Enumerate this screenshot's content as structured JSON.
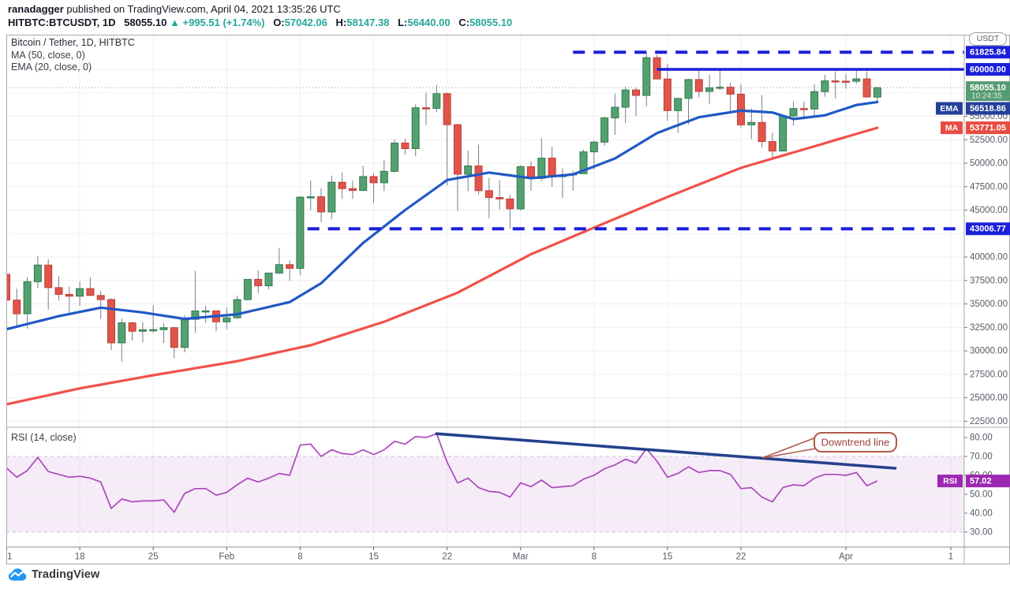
{
  "header": {
    "byline_user": "ranadagger",
    "byline_rest": " published on TradingView.com, April 04, 2021 13:35:26 UTC",
    "symbol_title": "HITBTC:BTCUSDT, 1D",
    "last_price": "58055.10",
    "change_arrow": "▲",
    "change_text": "+995.51 (+1.74%)",
    "ohlc": [
      {
        "k": "O:",
        "v": "57042.06"
      },
      {
        "k": "H:",
        "v": "58147.38"
      },
      {
        "k": "L:",
        "v": "56440.00"
      },
      {
        "k": "C:",
        "v": "58055.10"
      }
    ]
  },
  "legend": {
    "main": "Bitcoin / Tether, 1D, HITBTC",
    "ma": "MA (50, close, 0)",
    "ema": "EMA (20, close, 0)",
    "rsi": "RSI (14, close)"
  },
  "axis": {
    "currency_badge": "USDT"
  },
  "labels": {
    "level_high": "61825.84",
    "level_round": "60000.00",
    "current_price": "58055.10",
    "countdown": "10:24:35",
    "ema_tag": "EMA",
    "ema_value": "56518.86",
    "ma_tag": "MA",
    "ma_value": "53771.05",
    "level_support": "43006.77",
    "rsi_tag": "RSI",
    "rsi_value": "57.02"
  },
  "annotation": {
    "callout_label": "Downtrend line"
  },
  "footer": {
    "logo_text": "TradingView"
  },
  "colors": {
    "up": "#54a070",
    "up_border": "#2e7a4f",
    "down": "#e1544b",
    "down_border": "#bf3f37",
    "wick": "#7a7e87",
    "ema_line": "#2158c5",
    "ma_line": "#f1514a",
    "blue_line": "#1c1fd9",
    "trend": "#24418c",
    "rsi_line": "#ab47bc",
    "rsi_label_bg": "#9c27b0",
    "rsi_band": "rgba(171,71,188,0.10)",
    "rsi_band_border": "#cfc0d8",
    "teal": "#26a69a",
    "current_label_bg": "#579b72",
    "ema_label_bg": "#24409a",
    "ma_label_bg": "#e74c42",
    "callout_border": "#b05a4b",
    "callout_text": "#9c4437",
    "grid": "#efefef",
    "axis_text": "#555a64",
    "frame": "#a8a8a8",
    "current_dotted": "#9598a1",
    "logo_blue": "#2196f3"
  },
  "chart_data": {
    "type": "candlestick",
    "title": "Bitcoin / Tether, 1D, HITBTC",
    "exchange": "HITBTC",
    "symbol": "BTCUSDT",
    "interval": "1D",
    "start_date": "2021-01-11",
    "end_date": "2021-04-04",
    "price_axis": {
      "currency": "USDT",
      "tick_step": 2500,
      "ticks_labeled": [
        55000,
        52500,
        50000,
        47500,
        45000,
        40000,
        37500,
        35000,
        32500,
        30000,
        27500,
        25000,
        22500
      ],
      "range_shown": [
        22500,
        62500
      ]
    },
    "levels": {
      "resistance_high": 61825.84,
      "round_resistance": 60000.0,
      "support": 43006.77,
      "current": 58055.1,
      "ema20": 56518.86,
      "ma50": 53771.05,
      "rsi_current": 57.02
    },
    "hlines": [
      {
        "price": 61825.84,
        "style": "dashed",
        "from_day": 54
      },
      {
        "price": 60000.0,
        "style": "solid",
        "from_day": 62
      },
      {
        "price": 43006.77,
        "style": "dashed",
        "from_day": 28.7
      }
    ],
    "candles": [
      [
        38150,
        38264,
        30420,
        35410
      ],
      [
        35410,
        36628,
        32531,
        33954
      ],
      [
        33954,
        37850,
        32380,
        37371
      ],
      [
        37371,
        40100,
        36701,
        39144
      ],
      [
        39144,
        39747,
        34408,
        36742
      ],
      [
        36742,
        37950,
        35357,
        36018
      ],
      [
        36018,
        36860,
        33850,
        35828
      ],
      [
        35828,
        37402,
        34800,
        36631
      ],
      [
        36631,
        37857,
        35880,
        35901
      ],
      [
        35901,
        36400,
        33400,
        35468
      ],
      [
        35468,
        35600,
        30071,
        30852
      ],
      [
        30852,
        33456,
        28850,
        32985
      ],
      [
        32985,
        33092,
        31110,
        32087
      ],
      [
        32087,
        33071,
        30900,
        32254
      ],
      [
        32254,
        34875,
        31910,
        32262
      ],
      [
        32262,
        32921,
        30837,
        32467
      ],
      [
        32467,
        32557,
        29241,
        30366
      ],
      [
        30366,
        33783,
        29842,
        33364
      ],
      [
        33364,
        38531,
        31915,
        34252
      ],
      [
        34252,
        34834,
        32940,
        34262
      ],
      [
        34262,
        34288,
        32100,
        33092
      ],
      [
        33092,
        34638,
        32296,
        33526
      ],
      [
        33526,
        35896,
        33418,
        35466
      ],
      [
        35466,
        37649,
        35362,
        37618
      ],
      [
        37618,
        38592,
        36161,
        36936
      ],
      [
        36936,
        38300,
        36570,
        38290
      ],
      [
        38290,
        40955,
        38215,
        39186
      ],
      [
        39186,
        39621,
        37446,
        38795
      ],
      [
        38795,
        46500,
        38076,
        46374
      ],
      [
        46374,
        48142,
        44961,
        46420
      ],
      [
        46420,
        47310,
        43727,
        44807
      ],
      [
        44807,
        48678,
        44020,
        47969
      ],
      [
        47969,
        48985,
        46200,
        47287
      ],
      [
        47287,
        48150,
        46202,
        47093
      ],
      [
        47093,
        49700,
        47014,
        48577
      ],
      [
        48577,
        48895,
        45796,
        47911
      ],
      [
        47911,
        50341,
        47024,
        49133
      ],
      [
        49133,
        52533,
        49012,
        52149
      ],
      [
        52149,
        52601,
        50901,
        51552
      ],
      [
        51552,
        56273,
        50740,
        55906
      ],
      [
        55906,
        57505,
        54049,
        55841
      ],
      [
        55841,
        58332,
        55422,
        57408
      ],
      [
        57408,
        57533,
        47622,
        54104
      ],
      [
        54104,
        54175,
        44892,
        48824
      ],
      [
        48824,
        51345,
        47004,
        49705
      ],
      [
        49705,
        51948,
        46674,
        47073
      ],
      [
        47073,
        48424,
        44137,
        46339
      ],
      [
        46339,
        48158,
        45050,
        46188
      ],
      [
        46188,
        46603,
        43007,
        45135
      ],
      [
        45135,
        49784,
        44950,
        49631
      ],
      [
        49631,
        50200,
        47047,
        48378
      ],
      [
        48378,
        52640,
        48100,
        50538
      ],
      [
        50538,
        51773,
        47500,
        48561
      ],
      [
        48561,
        49448,
        46300,
        48751
      ],
      [
        48751,
        49200,
        47070,
        48882
      ],
      [
        48882,
        51450,
        48882,
        51206
      ],
      [
        51206,
        52425,
        49328,
        52246
      ],
      [
        52246,
        54936,
        51845,
        54824
      ],
      [
        54824,
        57402,
        53025,
        55963
      ],
      [
        55963,
        58150,
        54272,
        57805
      ],
      [
        57805,
        58047,
        55033,
        57221
      ],
      [
        57221,
        61826,
        56078,
        61243
      ],
      [
        61243,
        61546,
        58966,
        58972
      ],
      [
        58972,
        60592,
        54530,
        55605
      ],
      [
        55605,
        56938,
        53221,
        56900
      ],
      [
        56900,
        58974,
        54123,
        58912
      ],
      [
        58912,
        60040,
        57000,
        57648
      ],
      [
        57648,
        59460,
        56270,
        58030
      ],
      [
        58030,
        59880,
        57820,
        58102
      ],
      [
        58102,
        58630,
        55550,
        57351
      ],
      [
        57351,
        58425,
        53800,
        54083
      ],
      [
        54083,
        55840,
        52559,
        54340
      ],
      [
        54340,
        57250,
        51700,
        52303
      ],
      [
        52303,
        53250,
        50427,
        51295
      ],
      [
        51295,
        55120,
        51248,
        55030
      ],
      [
        55030,
        56600,
        53999,
        55824
      ],
      [
        55824,
        56560,
        54677,
        55770
      ],
      [
        55770,
        58405,
        54856,
        57624
      ],
      [
        57624,
        59397,
        57078,
        58771
      ],
      [
        58771,
        59799,
        56901,
        58740
      ],
      [
        58740,
        59474,
        57935,
        58726
      ],
      [
        58726,
        60090,
        58439,
        58981
      ],
      [
        58981,
        59790,
        56980,
        57062
      ],
      [
        57042.06,
        58147.38,
        56440.0,
        58055.1
      ]
    ],
    "ma50_points": [
      [
        0,
        24300
      ],
      [
        7,
        26000
      ],
      [
        14,
        27400
      ],
      [
        22,
        28900
      ],
      [
        29,
        30600
      ],
      [
        36,
        33100
      ],
      [
        43,
        36200
      ],
      [
        50,
        40300
      ],
      [
        57,
        43600
      ],
      [
        63,
        46400
      ],
      [
        70,
        49500
      ],
      [
        77,
        51800
      ],
      [
        83,
        53771.05
      ]
    ],
    "ema20_points": [
      [
        0,
        32300
      ],
      [
        5,
        33700
      ],
      [
        9,
        34600
      ],
      [
        13,
        34100
      ],
      [
        17,
        33400
      ],
      [
        22,
        33900
      ],
      [
        27,
        35200
      ],
      [
        30,
        37200
      ],
      [
        34,
        41500
      ],
      [
        38,
        45000
      ],
      [
        42,
        48200
      ],
      [
        46,
        49000
      ],
      [
        50,
        48400
      ],
      [
        54,
        48800
      ],
      [
        58,
        50500
      ],
      [
        62,
        53200
      ],
      [
        66,
        54900
      ],
      [
        70,
        55600
      ],
      [
        73,
        55400
      ],
      [
        75,
        54700
      ],
      [
        78,
        55100
      ],
      [
        81,
        56200
      ],
      [
        83,
        56518.86
      ]
    ],
    "rsi_axis": {
      "ticks": [
        30,
        40,
        50,
        60,
        70,
        80
      ],
      "band": [
        30,
        70
      ]
    },
    "rsi": [
      64,
      59,
      62.5,
      69.5,
      62,
      60.5,
      59,
      59.5,
      58.5,
      56.5,
      42.5,
      47.5,
      46,
      46.5,
      46.5,
      47,
      40.5,
      50.5,
      53,
      53,
      49.5,
      51,
      55,
      58.5,
      56.5,
      58.5,
      61,
      60,
      76,
      76.5,
      70,
      73.5,
      71.5,
      71,
      73.5,
      71,
      73.5,
      78,
      76.5,
      80.5,
      80,
      82,
      67,
      56,
      58.5,
      53.5,
      51.5,
      51,
      48.5,
      56,
      54,
      57.5,
      53.5,
      54,
      54.5,
      58,
      60,
      63.5,
      65.5,
      68.5,
      66.5,
      74,
      67.5,
      59,
      61,
      64.5,
      61.5,
      62.5,
      62.5,
      60.5,
      53,
      53.5,
      48.5,
      46,
      53.5,
      55,
      54.5,
      58.5,
      60.5,
      60.5,
      60,
      61.5,
      54.5,
      57.02
    ],
    "trendline": {
      "panel": "rsi",
      "from": {
        "day": 41,
        "rsi": 82
      },
      "to": {
        "day": 84.7,
        "rsi": 63.75
      }
    },
    "time_labels": [
      {
        "label": "1",
        "day": 0
      },
      {
        "label": "18",
        "day": 7
      },
      {
        "label": "25",
        "day": 14
      },
      {
        "label": "Feb",
        "day": 21
      },
      {
        "label": "8",
        "day": 28
      },
      {
        "label": "15",
        "day": 35
      },
      {
        "label": "22",
        "day": 42
      },
      {
        "label": "Mar",
        "day": 49
      },
      {
        "label": "8",
        "day": 56
      },
      {
        "label": "15",
        "day": 63
      },
      {
        "label": "22",
        "day": 70
      },
      {
        "label": "Apr",
        "day": 80
      },
      {
        "label": "1",
        "day": 90
      }
    ],
    "countdown": "10:24:35"
  }
}
